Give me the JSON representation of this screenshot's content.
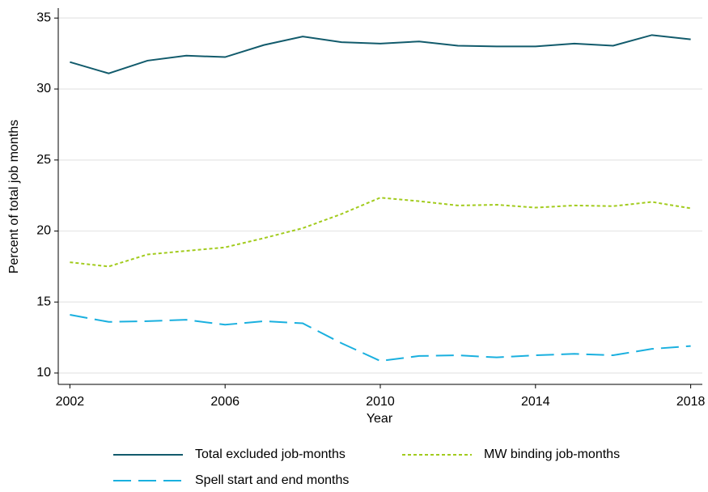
{
  "chart_data": {
    "type": "line",
    "xlabel": "Year",
    "ylabel": "Percent of total job months",
    "x": [
      2002,
      2003,
      2004,
      2005,
      2006,
      2007,
      2008,
      2009,
      2010,
      2011,
      2012,
      2013,
      2014,
      2015,
      2016,
      2017,
      2018
    ],
    "series": [
      {
        "name": "Total excluded job-months",
        "color": "#125b6c",
        "line_style": "solid",
        "values": [
          31.9,
          31.1,
          32.0,
          32.35,
          32.25,
          33.1,
          33.7,
          33.3,
          33.2,
          33.35,
          33.05,
          33.0,
          33.0,
          33.2,
          33.05,
          33.8,
          33.5
        ]
      },
      {
        "name": "MW binding job-months",
        "color": "#a2cb1d",
        "line_style": "dotted",
        "values": [
          17.8,
          17.5,
          18.35,
          18.6,
          18.85,
          19.5,
          20.2,
          21.2,
          22.35,
          22.1,
          21.8,
          21.85,
          21.65,
          21.8,
          21.75,
          22.05,
          21.6
        ]
      },
      {
        "name": "Spell start and end months",
        "color": "#1ab0df",
        "line_style": "dashed",
        "values": [
          14.1,
          13.6,
          13.65,
          13.75,
          13.4,
          13.65,
          13.5,
          12.1,
          10.85,
          11.2,
          11.25,
          11.1,
          11.25,
          11.35,
          11.25,
          11.7,
          11.9
        ]
      }
    ],
    "xlim": [
      2001.7,
      2018.3
    ],
    "xticks": [
      2002,
      2006,
      2010,
      2014,
      2018
    ],
    "ylim": [
      9.2,
      35.7
    ],
    "yticks": [
      10,
      15,
      20,
      25,
      30,
      35
    ],
    "grid": true,
    "legend": "bottom"
  }
}
